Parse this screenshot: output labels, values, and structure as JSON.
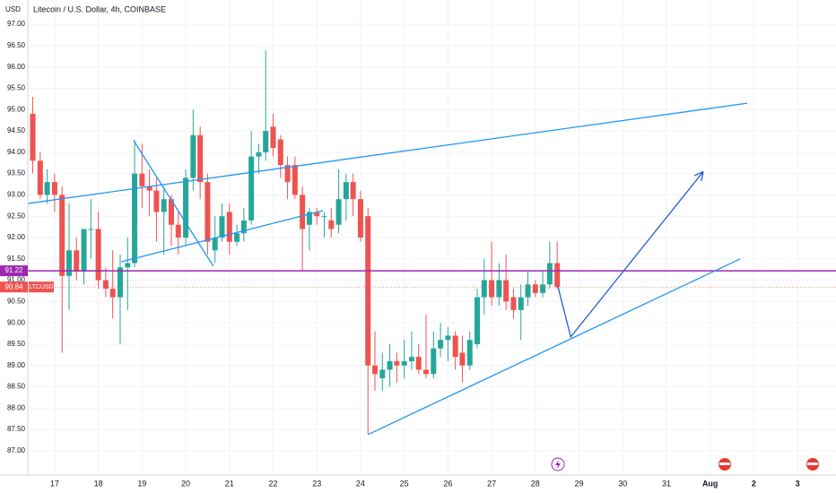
{
  "chart_data": {
    "type": "candlestick",
    "title": "Litecoin / U.S. Dollar, 4h, COINBASE",
    "y_axis_label": "USD",
    "up_color": "#26a69a",
    "down_color": "#ef5350",
    "grid": true,
    "xlim": [
      15.75,
      34.88
    ],
    "xticks": [
      17,
      18,
      19,
      20,
      21,
      22,
      23,
      24,
      25,
      26,
      27,
      28,
      29,
      30,
      31,
      {
        "value": 32,
        "label": "Aug"
      },
      {
        "value": 33,
        "label": "2"
      },
      {
        "value": 34,
        "label": "3"
      }
    ],
    "ylim": [
      86.43,
      97.57
    ],
    "yticks": [
      {
        "value": 87,
        "label": "87.00"
      },
      {
        "value": 87.5,
        "label": "87.50"
      },
      {
        "value": 88,
        "label": "88.00"
      },
      {
        "value": 88.5,
        "label": "88.50"
      },
      {
        "value": 89,
        "label": "89.00"
      },
      {
        "value": 89.5,
        "label": "89.50"
      },
      {
        "value": 90,
        "label": "90.00"
      },
      {
        "value": 90.5,
        "label": "90.50"
      },
      {
        "value": 91,
        "label": "91.00"
      },
      {
        "value": 91.5,
        "label": "91.50"
      },
      {
        "value": 92,
        "label": "92.00"
      },
      {
        "value": 92.5,
        "label": "92.50"
      },
      {
        "value": 93,
        "label": "93.00"
      },
      {
        "value": 93.5,
        "label": "93.50"
      },
      {
        "value": 94,
        "label": "94.00"
      },
      {
        "value": 94.5,
        "label": "94.50"
      },
      {
        "value": 95,
        "label": "95.00"
      },
      {
        "value": 95.5,
        "label": "95.50"
      },
      {
        "value": 96,
        "label": "96.00"
      },
      {
        "value": 96.5,
        "label": "96.50"
      },
      {
        "value": 97,
        "label": "97.00"
      }
    ],
    "x": [
      16.5,
      16.67,
      16.83,
      17,
      17.17,
      17.33,
      17.5,
      17.67,
      17.83,
      18,
      18.17,
      18.33,
      18.5,
      18.67,
      18.83,
      19,
      19.17,
      19.33,
      19.5,
      19.67,
      19.83,
      20,
      20.17,
      20.33,
      20.5,
      20.67,
      20.83,
      21,
      21.17,
      21.33,
      21.5,
      21.67,
      21.83,
      22,
      22.17,
      22.33,
      22.5,
      22.67,
      22.83,
      23,
      23.17,
      23.33,
      23.5,
      23.67,
      23.83,
      24,
      24.17,
      24.33,
      24.5,
      24.67,
      24.83,
      25,
      25.17,
      25.33,
      25.5,
      25.67,
      25.83,
      26,
      26.17,
      26.33,
      26.5,
      26.67,
      26.83,
      27,
      27.17,
      27.33,
      27.5,
      27.67,
      27.83,
      28,
      28.17,
      28.33,
      28.5
    ],
    "open": [
      94.9,
      93.8,
      93.0,
      93.3,
      93.0,
      91.1,
      91.7,
      91.2,
      92.2,
      92.2,
      91.0,
      90.8,
      90.6,
      91.3,
      91.4,
      93.5,
      93.2,
      93.1,
      92.6,
      92.9,
      92.3,
      92.0,
      93.4,
      94.4,
      93.3,
      91.7,
      92.0,
      92.6,
      91.9,
      92.1,
      92.4,
      93.9,
      94.0,
      94.6,
      94.3,
      93.7,
      93.7,
      93.0,
      92.3,
      92.6,
      92.5,
      92.4,
      92.3,
      92.9,
      93.3,
      92.9,
      92.5,
      89.0,
      88.7,
      88.9,
      89.1,
      89.0,
      89.1,
      89.2,
      88.9,
      88.8,
      89.4,
      89.6,
      89.7,
      89.3,
      89.0,
      89.5,
      90.6,
      91.0,
      90.6,
      91.0,
      90.6,
      90.3,
      90.6,
      90.9,
      90.7,
      90.9,
      91.4
    ],
    "high": [
      95.3,
      94.0,
      93.6,
      93.5,
      93.2,
      92.8,
      92.0,
      92.2,
      92.9,
      92.6,
      91.3,
      91.7,
      91.6,
      92.0,
      94.3,
      94.2,
      93.6,
      93.4,
      93.2,
      93.0,
      92.6,
      93.6,
      95.0,
      94.6,
      93.5,
      92.5,
      92.8,
      92.8,
      92.3,
      92.7,
      94.5,
      94.2,
      96.4,
      94.9,
      94.4,
      93.9,
      93.9,
      93.2,
      92.7,
      92.7,
      92.6,
      92.7,
      93.6,
      93.5,
      93.5,
      93.1,
      92.7,
      89.8,
      89.3,
      89.5,
      89.3,
      89.6,
      89.8,
      89.5,
      90.2,
      89.8,
      90.0,
      89.9,
      89.8,
      89.7,
      89.8,
      90.8,
      91.5,
      91.9,
      91.4,
      91.6,
      90.8,
      90.9,
      91.2,
      91.0,
      91.2,
      91.9,
      91.9
    ],
    "low": [
      93.5,
      92.9,
      92.8,
      92.6,
      89.3,
      90.3,
      91.0,
      90.9,
      91.5,
      90.8,
      90.6,
      90.1,
      89.5,
      90.3,
      91.3,
      92.7,
      92.5,
      91.9,
      91.6,
      91.8,
      91.6,
      91.8,
      93.1,
      92.9,
      91.6,
      91.4,
      91.9,
      91.6,
      91.8,
      91.9,
      92.3,
      93.5,
      93.8,
      93.9,
      93.4,
      92.9,
      92.9,
      91.2,
      91.7,
      92.3,
      92.0,
      92.0,
      92.1,
      92.4,
      92.5,
      91.9,
      87.4,
      88.4,
      88.4,
      88.5,
      88.6,
      88.7,
      88.9,
      88.8,
      88.7,
      88.7,
      89.2,
      89.1,
      88.9,
      88.6,
      88.9,
      89.4,
      90.2,
      90.4,
      90.4,
      90.3,
      90.1,
      89.6,
      90.4,
      90.6,
      90.6,
      90.8,
      90.8
    ],
    "close": [
      93.8,
      93.0,
      93.3,
      93.0,
      91.1,
      91.7,
      91.2,
      92.2,
      92.2,
      91.0,
      90.8,
      90.6,
      91.3,
      91.4,
      93.5,
      93.2,
      93.1,
      92.6,
      92.9,
      92.3,
      92.0,
      93.4,
      94.4,
      93.3,
      91.9,
      92.0,
      92.5,
      91.9,
      92.1,
      92.4,
      93.9,
      94.0,
      94.5,
      94.1,
      93.7,
      93.3,
      93.0,
      92.2,
      92.6,
      92.5,
      92.5,
      92.2,
      92.9,
      93.3,
      92.9,
      92.0,
      89.0,
      88.8,
      88.9,
      89.1,
      89.0,
      89.1,
      89.2,
      88.9,
      88.8,
      89.4,
      89.6,
      89.7,
      89.2,
      89.0,
      89.6,
      90.6,
      91.0,
      90.6,
      91.0,
      90.5,
      90.3,
      90.6,
      90.9,
      90.7,
      90.9,
      91.4,
      90.84
    ],
    "hline": {
      "value": 91.22,
      "label": "91.22",
      "color": "#9c27b0"
    },
    "last_price": {
      "value": 90.84,
      "label": "90.84",
      "symbol": "LTCUSD"
    },
    "drawings": [
      {
        "x": [
          16.4,
          32.85
        ],
        "y": [
          92.8,
          95.15
        ],
        "color": "#2196f3"
      },
      {
        "x": [
          24.17,
          32.69
        ],
        "y": [
          87.38,
          91.5
        ],
        "color": "#2196f3"
      },
      {
        "x": [
          18.52,
          23.14
        ],
        "y": [
          91.43,
          92.63
        ],
        "color": "#2196f3"
      },
      {
        "x": [
          18.81,
          20.63
        ],
        "y": [
          94.27,
          91.33
        ],
        "color": "#2196f3"
      },
      {
        "x": [
          28.52,
          28.81,
          31.83
        ],
        "y": [
          90.84,
          89.67,
          93.53
        ],
        "color": "#1e5fd1",
        "arrow": true
      }
    ]
  }
}
